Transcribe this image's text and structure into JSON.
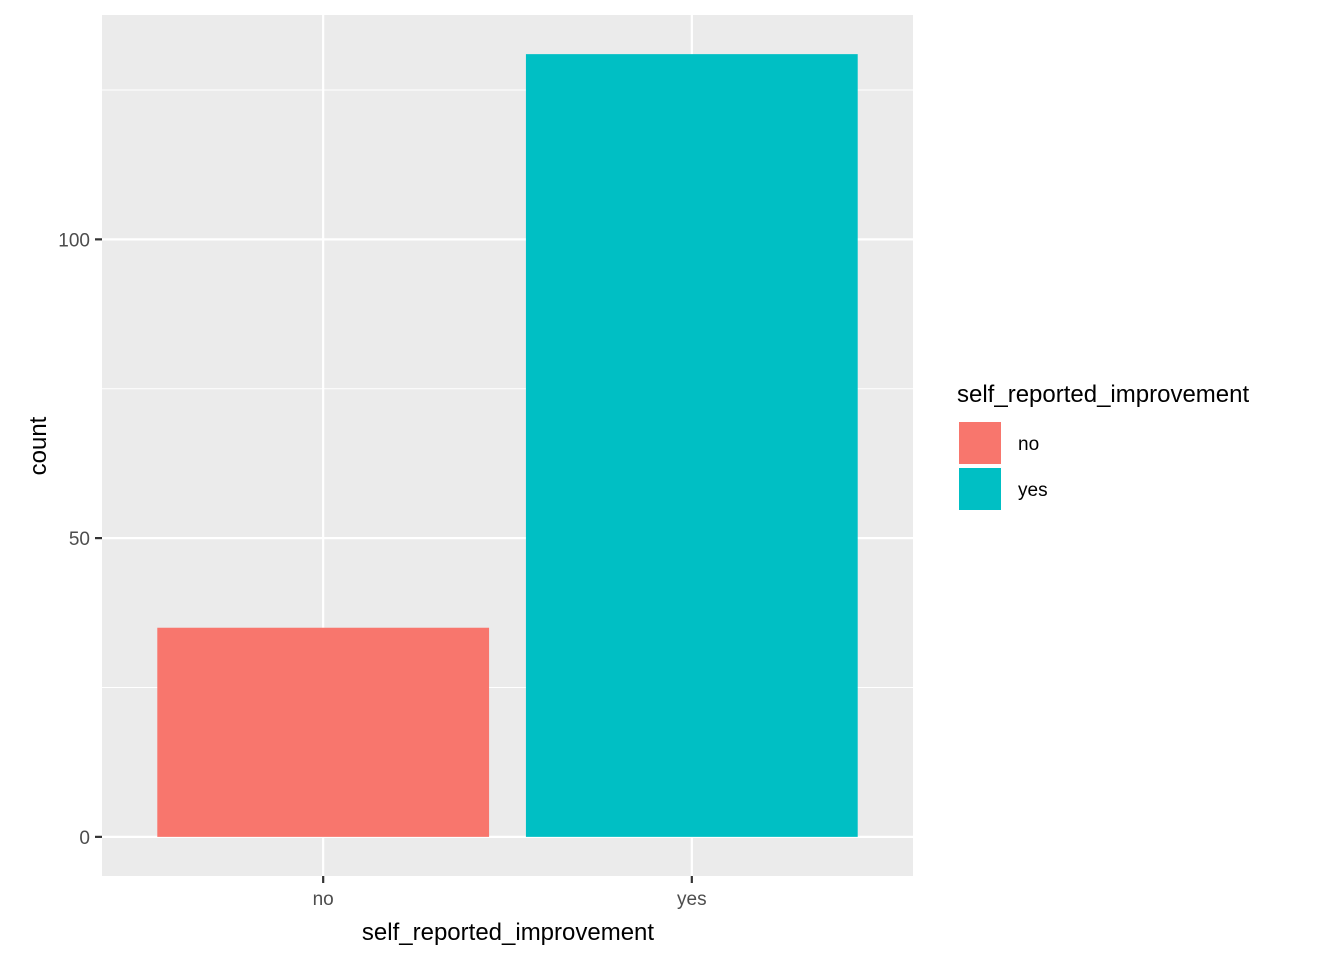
{
  "chart_data": {
    "type": "bar",
    "categories": [
      "no",
      "yes"
    ],
    "values": [
      35,
      131
    ],
    "xlabel": "self_reported_improvement",
    "ylabel": "count",
    "ylim": [
      -6.55,
      137.55
    ],
    "yticks": [
      0,
      50,
      100
    ],
    "grid": true,
    "legend": {
      "title": "self_reported_improvement",
      "position": "right",
      "entries": [
        {
          "label": "no",
          "color": "#F8766D"
        },
        {
          "label": "yes",
          "color": "#00BFC4"
        }
      ]
    },
    "colors": {
      "no": "#F8766D",
      "yes": "#00BFC4",
      "panel_background": "#EBEBEB",
      "grid_line": "#FFFFFF"
    }
  }
}
